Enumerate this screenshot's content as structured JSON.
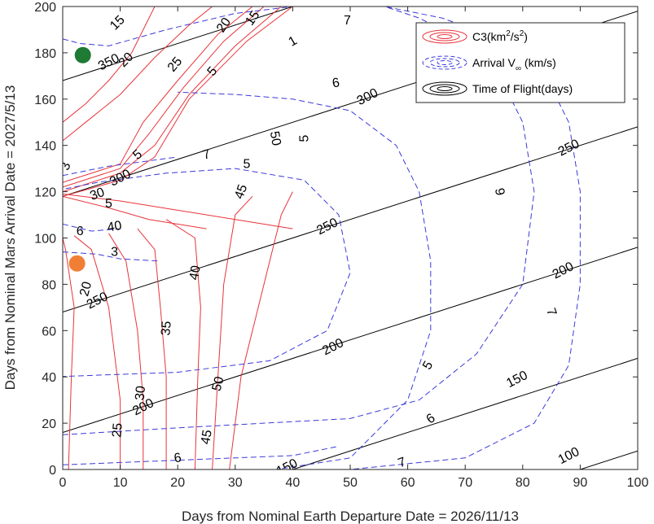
{
  "chart_data": {
    "type": "contour",
    "xlabel": "Days from Nominal Earth Departure Date = 2026/11/13",
    "ylabel": "Days from Nominal Mars Arrival Date = 2027/5/13",
    "xlim": [
      0,
      100
    ],
    "ylim": [
      0,
      200
    ],
    "xticks": [
      0,
      10,
      20,
      30,
      40,
      50,
      60,
      70,
      80,
      90,
      100
    ],
    "yticks": [
      0,
      20,
      40,
      60,
      80,
      100,
      120,
      140,
      160,
      180,
      200
    ],
    "grid": false,
    "legend_position": "top-right",
    "legend": {
      "c3": {
        "text": "C3(km",
        "sup1": "2",
        "text2": "/s",
        "sup2": "2",
        "text3": ")",
        "color": "#e8343b"
      },
      "vinf": {
        "text": "Arrival V",
        "sub": "∞",
        "text2": " (km/s)",
        "color": "#3a3adb"
      },
      "tof": {
        "text": "Time of Flight(days)",
        "color": "#000000"
      }
    },
    "colors": {
      "c3": "#e8343b",
      "vinf": "#3a3adb",
      "tof": "#000000",
      "green_marker": "#1f7a34",
      "orange_marker": "#f07f35"
    },
    "tof_lines": [
      {
        "value": 100,
        "points": [
          [
            80,
            -8
          ],
          [
            100,
            8
          ]
        ]
      },
      {
        "value": 150,
        "points": [
          [
            30,
            -8
          ],
          [
            100,
            48
          ]
        ]
      },
      {
        "value": 200,
        "points": [
          [
            0,
            16
          ],
          [
            100,
            96
          ]
        ]
      },
      {
        "value": 250,
        "points": [
          [
            0,
            68
          ],
          [
            100,
            148
          ]
        ]
      },
      {
        "value": 300,
        "points": [
          [
            0,
            118
          ],
          [
            100,
            198
          ]
        ]
      },
      {
        "value": 350,
        "points": [
          [
            0,
            168
          ],
          [
            40,
            200
          ]
        ]
      }
    ],
    "tof_labels": [
      {
        "text": "100",
        "x": 88,
        "y": 6,
        "angle": -27
      },
      {
        "text": "150",
        "x": 79,
        "y": 39,
        "angle": -27
      },
      {
        "text": "150",
        "x": 39,
        "y": 1,
        "angle": -27
      },
      {
        "text": "200",
        "x": 14,
        "y": 27,
        "angle": -27
      },
      {
        "text": "200",
        "x": 47,
        "y": 53,
        "angle": -27
      },
      {
        "text": "200",
        "x": 87,
        "y": 86,
        "angle": -27
      },
      {
        "text": "250",
        "x": 6,
        "y": 73,
        "angle": -27
      },
      {
        "text": "250",
        "x": 46,
        "y": 105,
        "angle": -27
      },
      {
        "text": "250",
        "x": 88,
        "y": 139,
        "angle": -27
      },
      {
        "text": "300",
        "x": 10,
        "y": 126,
        "angle": -27
      },
      {
        "text": "300",
        "x": 53,
        "y": 161,
        "angle": -27
      },
      {
        "text": "350",
        "x": 8,
        "y": 176,
        "angle": -27
      }
    ],
    "c3_lines": [
      {
        "value": 20,
        "points": [
          [
            1,
            0
          ],
          [
            1.5,
            40
          ],
          [
            2,
            70
          ],
          [
            0.5,
            95
          ],
          [
            0,
            100
          ]
        ]
      },
      {
        "value": 25,
        "points": [
          [
            10,
            0
          ],
          [
            10,
            30
          ],
          [
            8,
            70
          ],
          [
            5,
            95
          ],
          [
            2,
            101
          ]
        ]
      },
      {
        "value": 30,
        "points": [
          [
            14,
            0
          ],
          [
            14,
            30
          ],
          [
            13,
            60
          ],
          [
            11,
            90
          ],
          [
            8,
            102
          ]
        ]
      },
      {
        "value": 35,
        "points": [
          [
            18,
            0
          ],
          [
            18,
            40
          ],
          [
            17,
            70
          ],
          [
            16,
            95
          ],
          [
            13,
            104
          ]
        ]
      },
      {
        "value": 40,
        "points": [
          [
            23,
            0
          ],
          [
            23.5,
            40
          ],
          [
            24,
            70
          ],
          [
            23,
            100
          ],
          [
            18,
            108
          ]
        ]
      },
      {
        "value": 45,
        "points": [
          [
            26,
            0
          ],
          [
            27,
            40
          ],
          [
            28,
            80
          ],
          [
            30,
            110
          ],
          [
            33,
            118
          ]
        ]
      },
      {
        "value": 50,
        "points": [
          [
            29,
            0
          ],
          [
            31,
            40
          ],
          [
            35,
            80
          ],
          [
            38,
            110
          ],
          [
            40,
            120
          ]
        ]
      },
      {
        "value": 5,
        "points": [
          [
            0,
            118
          ],
          [
            10,
            125
          ],
          [
            16,
            135
          ],
          [
            22,
            160
          ],
          [
            32,
            185
          ],
          [
            40,
            200
          ]
        ]
      },
      {
        "value": 10,
        "points": [
          [
            0,
            120
          ],
          [
            10,
            128
          ],
          [
            16,
            140
          ],
          [
            22,
            162
          ],
          [
            30,
            183
          ],
          [
            38,
            200
          ]
        ]
      },
      {
        "value": 15,
        "points": [
          [
            0,
            122
          ],
          [
            10,
            130
          ],
          [
            15,
            145
          ],
          [
            21,
            165
          ],
          [
            28,
            185
          ],
          [
            35,
            200
          ]
        ]
      },
      {
        "value": 20,
        "points": [
          [
            0,
            124
          ],
          [
            10,
            132
          ],
          [
            14,
            150
          ],
          [
            20,
            168
          ],
          [
            27,
            188
          ],
          [
            33,
            200
          ]
        ]
      },
      {
        "value": 25,
        "points": [
          [
            0,
            142
          ],
          [
            4,
            150
          ],
          [
            10,
            162
          ],
          [
            16,
            178
          ],
          [
            22,
            192
          ],
          [
            26,
            200
          ]
        ]
      },
      {
        "value": 15,
        "points": [
          [
            0,
            150
          ],
          [
            4,
            158
          ],
          [
            8,
            168
          ],
          [
            12,
            180
          ],
          [
            16,
            200
          ]
        ]
      },
      {
        "value": 40,
        "points": [
          [
            0,
            119
          ],
          [
            10,
            116
          ],
          [
            20,
            112
          ],
          [
            30,
            108
          ],
          [
            40,
            104
          ]
        ]
      },
      {
        "value": 35,
        "points": [
          [
            0,
            118
          ],
          [
            8,
            113
          ],
          [
            15,
            108
          ],
          [
            25,
            104
          ]
        ]
      }
    ],
    "c3_labels": [
      {
        "text": "20",
        "x": 11,
        "y": 177,
        "angle": -45
      },
      {
        "text": "25",
        "x": 19.5,
        "y": 175,
        "angle": -50
      },
      {
        "text": "15",
        "x": 9.5,
        "y": 193,
        "angle": -45
      },
      {
        "text": "5",
        "x": 26,
        "y": 172,
        "angle": -50
      },
      {
        "text": "20",
        "x": 28,
        "y": 192,
        "angle": -55
      },
      {
        "text": "15",
        "x": 33,
        "y": 195,
        "angle": -55
      },
      {
        "text": "50",
        "x": 37,
        "y": 143,
        "angle": 80
      },
      {
        "text": "45",
        "x": 31,
        "y": 120,
        "angle": -70
      },
      {
        "text": "40",
        "x": 23,
        "y": 85,
        "angle": -80
      },
      {
        "text": "35",
        "x": 18,
        "y": 61,
        "angle": -85
      },
      {
        "text": "30",
        "x": 13.5,
        "y": 33,
        "angle": -85
      },
      {
        "text": "25",
        "x": 9.5,
        "y": 17,
        "angle": -85
      },
      {
        "text": "20",
        "x": 4,
        "y": 78,
        "angle": -75
      },
      {
        "text": "40",
        "x": 9,
        "y": 105,
        "angle": -10
      },
      {
        "text": "50",
        "x": 27,
        "y": 37,
        "angle": -75
      },
      {
        "text": "45",
        "x": 25,
        "y": 14,
        "angle": -80
      },
      {
        "text": "30",
        "x": 6,
        "y": 119,
        "angle": -20
      }
    ],
    "vinf_lines": [
      {
        "value": 5,
        "points": [
          [
            -2,
            40
          ],
          [
            20,
            42
          ],
          [
            36,
            47
          ],
          [
            46,
            60
          ],
          [
            50,
            85
          ],
          [
            48,
            110
          ],
          [
            42,
            125
          ],
          [
            30,
            130
          ],
          [
            18,
            128
          ],
          [
            6,
            124
          ],
          [
            -2,
            120
          ]
        ]
      },
      {
        "value": 5,
        "points": [
          [
            32,
            -2
          ],
          [
            50,
            5
          ],
          [
            60,
            30
          ],
          [
            64,
            60
          ],
          [
            64,
            90
          ],
          [
            62,
            120
          ],
          [
            58,
            140
          ],
          [
            50,
            155
          ],
          [
            40,
            160
          ],
          [
            30,
            162
          ],
          [
            20,
            163
          ]
        ]
      },
      {
        "value": 6,
        "points": [
          [
            0,
            15
          ],
          [
            20,
            18
          ],
          [
            50,
            22
          ],
          [
            62,
            30
          ],
          [
            72,
            50
          ],
          [
            80,
            80
          ],
          [
            82,
            120
          ],
          [
            80,
            150
          ],
          [
            76,
            170
          ],
          [
            70,
            185
          ],
          [
            62,
            195
          ],
          [
            56,
            200
          ]
        ]
      },
      {
        "value": 6,
        "points": [
          [
            0,
            2
          ],
          [
            20,
            4
          ],
          [
            40,
            6
          ],
          [
            48,
            10
          ]
        ]
      },
      {
        "value": 7,
        "points": [
          [
            35,
            -2
          ],
          [
            50,
            0
          ],
          [
            70,
            5
          ],
          [
            82,
            20
          ],
          [
            88,
            45
          ],
          [
            90,
            80
          ],
          [
            90,
            120
          ],
          [
            88,
            150
          ],
          [
            84,
            170
          ],
          [
            77,
            185
          ],
          [
            66,
            195
          ],
          [
            56,
            200
          ]
        ]
      },
      {
        "value": 7,
        "points": [
          [
            0,
            127
          ],
          [
            8,
            131
          ],
          [
            14,
            133
          ],
          [
            20,
            135
          ]
        ]
      },
      {
        "value": 3,
        "points": [
          [
            0,
            94
          ],
          [
            6,
            93
          ],
          [
            10,
            91
          ],
          [
            17,
            90
          ]
        ]
      },
      {
        "value": 6,
        "points": [
          [
            0,
            106
          ],
          [
            5,
            103
          ],
          [
            10,
            104
          ]
        ]
      },
      {
        "value": 5,
        "points": [
          [
            0,
            186
          ],
          [
            3,
            184
          ],
          [
            8,
            183
          ],
          [
            18,
            190
          ],
          [
            30,
            197
          ],
          [
            40,
            200
          ]
        ]
      }
    ],
    "vinf_labels": [
      {
        "text": "5",
        "x": 13,
        "y": 136,
        "angle": -40
      },
      {
        "text": "7",
        "x": 25,
        "y": 136,
        "angle": -15
      },
      {
        "text": "7",
        "x": 49.5,
        "y": 194,
        "angle": 0
      },
      {
        "text": "6",
        "x": 47.5,
        "y": 167,
        "angle": -10
      },
      {
        "text": "5",
        "x": 42,
        "y": 143,
        "angle": -90
      },
      {
        "text": "5",
        "x": 32,
        "y": 132,
        "angle": 0
      },
      {
        "text": "9",
        "x": 76,
        "y": 120,
        "angle": 80
      },
      {
        "text": "5",
        "x": 63.5,
        "y": 45,
        "angle": -60
      },
      {
        "text": "6",
        "x": 64,
        "y": 22,
        "angle": -35
      },
      {
        "text": "7",
        "x": 85,
        "y": 68,
        "angle": 70
      },
      {
        "text": "7",
        "x": 59,
        "y": 3,
        "angle": -20
      },
      {
        "text": "6",
        "x": 20,
        "y": 5,
        "angle": -10
      },
      {
        "text": "3",
        "x": 9,
        "y": 94,
        "angle": 0
      },
      {
        "text": "6",
        "x": 3,
        "y": 103,
        "angle": 0
      },
      {
        "text": "5",
        "x": 8,
        "y": 115,
        "angle": 0
      },
      {
        "text": "1",
        "x": 40,
        "y": 185,
        "angle": -30
      },
      {
        "text": "3",
        "x": 0.5,
        "y": 131,
        "angle": -70
      }
    ],
    "markers": [
      {
        "name": "optimal-arrival",
        "x": 3.5,
        "y": 179,
        "color": "#1f7a34"
      },
      {
        "name": "alternate-arrival",
        "x": 2.5,
        "y": 89,
        "color": "#f07f35"
      }
    ]
  }
}
